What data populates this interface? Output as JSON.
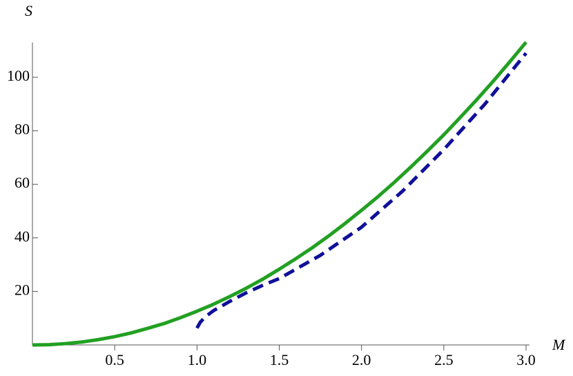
{
  "chart_data": {
    "type": "line",
    "x_label": "M",
    "y_label": "S",
    "xlim": [
      0,
      3.0
    ],
    "ylim": [
      0,
      113
    ],
    "xticks": [
      {
        "value": 0.5,
        "label": "0.5"
      },
      {
        "value": 1.0,
        "label": "1.0"
      },
      {
        "value": 1.5,
        "label": "1.5"
      },
      {
        "value": 2.0,
        "label": "2.0"
      },
      {
        "value": 2.5,
        "label": "2.5"
      },
      {
        "value": 3.0,
        "label": "3.0"
      }
    ],
    "yticks": [
      20,
      40,
      60,
      80,
      100
    ],
    "series": [
      {
        "color": "#22a022",
        "dash": false,
        "x": [
          0,
          0.1,
          0.2,
          0.3,
          0.4,
          0.5,
          0.6,
          0.7,
          0.8,
          0.9,
          1.0,
          1.1,
          1.2,
          1.3,
          1.4,
          1.5,
          1.6,
          1.7,
          1.8,
          1.9,
          2.0,
          2.1,
          2.2,
          2.3,
          2.4,
          2.5,
          2.6,
          2.7,
          2.8,
          2.9,
          3.0
        ],
        "values": [
          0,
          0.1,
          0.5,
          1.1,
          2.0,
          3.1,
          4.5,
          6.2,
          8.0,
          10.2,
          12.6,
          15.2,
          18.1,
          21.2,
          24.6,
          28.3,
          32.2,
          36.3,
          40.7,
          45.4,
          50.3,
          55.4,
          60.8,
          66.5,
          72.4,
          78.5,
          85.0,
          91.6,
          98.5,
          105.7,
          113.1
        ]
      },
      {
        "color": "#10109a",
        "dash": true,
        "x": [
          1.0,
          1.02,
          1.05,
          1.1,
          1.2,
          1.3,
          1.4,
          1.5,
          1.75,
          2.0,
          2.25,
          2.5,
          2.75,
          3.0
        ],
        "values": [
          6.3,
          8.5,
          10.5,
          12.8,
          16.3,
          19.5,
          22.3,
          24.8,
          33.5,
          44.0,
          57.5,
          73.0,
          90.0,
          109.0
        ]
      }
    ]
  }
}
